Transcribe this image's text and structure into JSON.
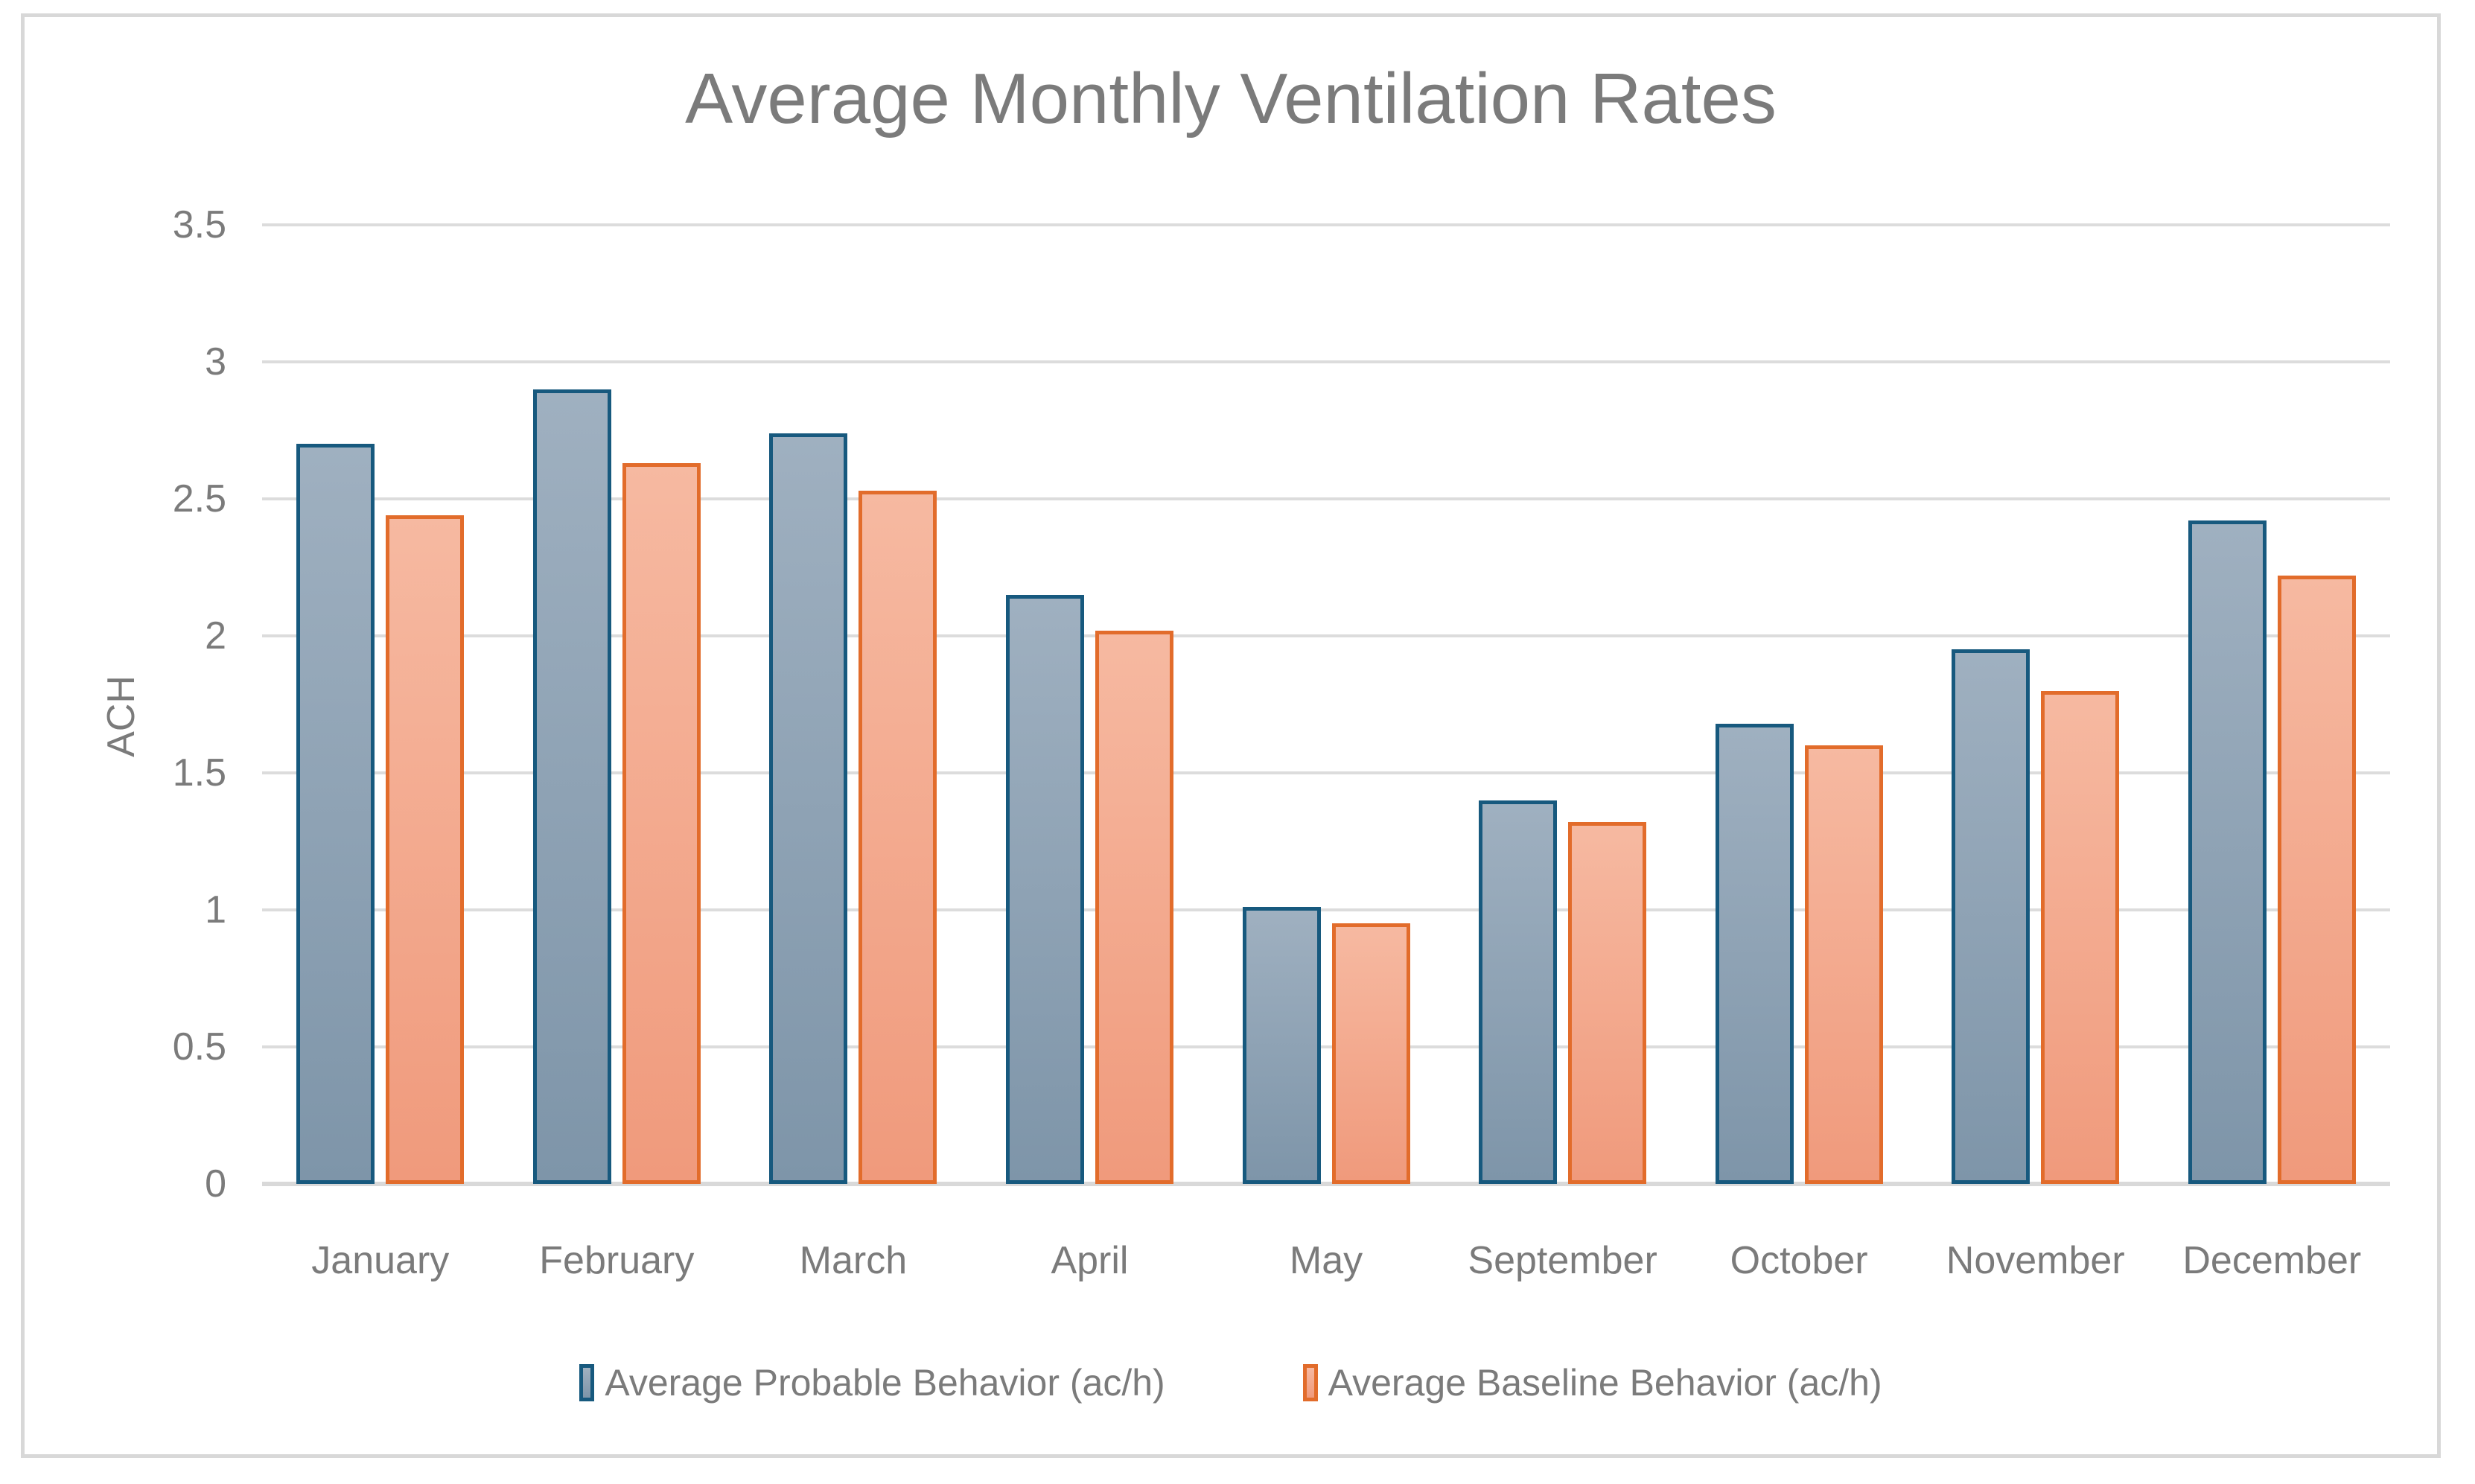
{
  "chart_data": {
    "type": "bar",
    "title": "Average Monthly Ventilation Rates",
    "xlabel": "",
    "ylabel": "ACH",
    "ylim": [
      0,
      3.5
    ],
    "ytick_step": 0.5,
    "yticks": [
      {
        "value": 3.5,
        "label": "3.5"
      },
      {
        "value": 3,
        "label": "3"
      },
      {
        "value": 2.5,
        "label": "2.5"
      },
      {
        "value": 2,
        "label": "2"
      },
      {
        "value": 1.5,
        "label": "1.5"
      },
      {
        "value": 1,
        "label": "1"
      },
      {
        "value": 0.5,
        "label": "0.5"
      },
      {
        "value": 0,
        "label": "0"
      }
    ],
    "grid": true,
    "legend_position": "bottom",
    "categories": [
      "January",
      "February",
      "March",
      "April",
      "May",
      "September",
      "October",
      "November",
      "December"
    ],
    "series": [
      {
        "name": "Average Probable Behavior (ac/h)",
        "values": [
          2.7,
          2.9,
          2.74,
          2.15,
          1.01,
          1.4,
          1.68,
          1.95,
          2.42
        ]
      },
      {
        "name": "Average Baseline Behavior (ac/h)",
        "values": [
          2.44,
          2.63,
          2.53,
          2.02,
          0.95,
          1.32,
          1.6,
          1.8,
          2.22
        ]
      }
    ],
    "colors": {
      "background": "#FFFFFF",
      "frame_border": "#D8D8D8",
      "gridline": "#DCDCDC",
      "text": "#7B7B7B",
      "series": [
        {
          "border": "#17597E",
          "fill_top": "#9FB0C0",
          "fill_bottom": "#7E95A9"
        },
        {
          "border": "#E26C2B",
          "fill_top": "#F6B9A1",
          "fill_bottom": "#F09A7C"
        }
      ]
    }
  }
}
